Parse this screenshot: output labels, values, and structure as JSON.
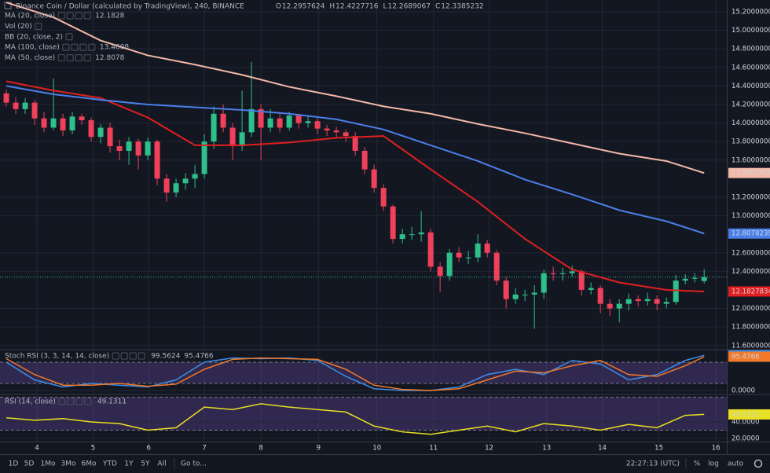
{
  "chart_data": [
    {
      "type": "candlestick",
      "title": "Binance Coin / Dollar (calculated by TradingView), 240, BINANCE",
      "ohlc_labels": [
        "O",
        "H",
        "L",
        "C"
      ],
      "up_color": "#2fbf8a",
      "down_color": "#f0405a",
      "grid": true,
      "open": [
        14.32,
        14.22,
        14.15,
        14.22,
        14.05,
        13.95,
        14.05,
        13.92,
        14.07,
        14.03,
        13.85,
        13.95,
        13.75,
        13.7,
        13.8,
        13.65,
        13.8,
        13.4,
        13.25,
        13.35,
        13.4,
        13.45,
        13.8,
        14.1,
        13.95,
        13.75,
        13.9,
        14.15,
        13.95,
        14.05,
        13.95,
        14.08,
        14.0,
        14.02,
        13.94,
        13.92,
        13.9,
        13.86,
        13.7,
        13.5,
        13.3,
        13.1,
        12.75,
        12.8,
        12.8,
        12.82,
        12.45,
        12.35,
        12.6,
        12.55,
        12.55,
        12.7,
        12.6,
        12.3,
        12.1,
        12.15,
        12.15,
        12.17,
        12.38,
        12.37,
        12.38,
        12.4,
        12.2,
        12.22,
        12.05,
        12.0,
        12.05,
        12.1,
        12.08,
        12.1,
        12.05,
        12.07,
        12.3,
        12.32,
        12.2957624
      ],
      "high": [
        14.36,
        14.28,
        14.27,
        14.25,
        14.12,
        14.48,
        14.1,
        14.12,
        14.1,
        14.06,
        13.99,
        14.0,
        13.82,
        13.85,
        13.83,
        13.84,
        13.82,
        13.45,
        13.4,
        13.46,
        13.55,
        13.88,
        14.18,
        14.2,
        14.0,
        14.35,
        14.66,
        14.2,
        14.15,
        14.12,
        14.12,
        14.1,
        14.08,
        14.05,
        13.98,
        13.96,
        13.93,
        13.9,
        13.74,
        13.55,
        13.34,
        13.12,
        12.86,
        12.88,
        13.05,
        12.86,
        12.5,
        12.64,
        12.66,
        12.62,
        12.8,
        12.74,
        12.63,
        12.34,
        12.22,
        12.2,
        12.25,
        12.42,
        12.45,
        12.44,
        12.46,
        12.42,
        12.28,
        12.25,
        12.1,
        12.1,
        12.16,
        12.14,
        12.17,
        12.14,
        12.12,
        12.36,
        12.37,
        12.38,
        12.4227716
      ],
      "low": [
        14.18,
        14.1,
        14.1,
        13.98,
        13.9,
        13.92,
        13.86,
        13.88,
        13.98,
        13.8,
        13.78,
        13.68,
        13.6,
        13.55,
        13.5,
        13.6,
        13.33,
        13.15,
        13.2,
        13.28,
        13.3,
        13.4,
        13.72,
        13.9,
        13.6,
        13.7,
        13.85,
        13.6,
        13.9,
        13.9,
        13.92,
        13.94,
        13.95,
        13.88,
        13.86,
        13.84,
        13.8,
        13.65,
        13.45,
        13.25,
        13.05,
        12.7,
        12.7,
        12.74,
        12.72,
        12.4,
        12.18,
        12.3,
        12.5,
        12.48,
        12.5,
        12.55,
        12.25,
        12.0,
        12.05,
        12.08,
        11.78,
        12.1,
        12.3,
        12.3,
        12.34,
        12.14,
        12.15,
        11.95,
        11.92,
        11.85,
        11.98,
        12.02,
        12.03,
        11.98,
        12.0,
        12.04,
        12.26,
        12.28,
        12.2689067
      ],
      "close": [
        14.22,
        14.15,
        14.22,
        14.05,
        13.95,
        14.05,
        13.92,
        14.07,
        14.03,
        13.85,
        13.95,
        13.75,
        13.7,
        13.8,
        13.65,
        13.8,
        13.4,
        13.25,
        13.35,
        13.4,
        13.45,
        13.8,
        14.1,
        13.95,
        13.75,
        13.9,
        14.15,
        13.95,
        14.05,
        13.95,
        14.08,
        14.0,
        14.02,
        13.94,
        13.92,
        13.9,
        13.86,
        13.7,
        13.5,
        13.3,
        13.1,
        12.75,
        12.8,
        12.8,
        12.82,
        12.45,
        12.35,
        12.6,
        12.55,
        12.55,
        12.7,
        12.6,
        12.3,
        12.1,
        12.15,
        12.15,
        12.17,
        12.38,
        12.37,
        12.38,
        12.4,
        12.2,
        12.22,
        12.05,
        12.0,
        12.05,
        12.1,
        12.08,
        12.1,
        12.05,
        12.07,
        12.3,
        12.32,
        12.33,
        12.3385232
      ],
      "xlim": [
        -0.67,
        76.4
      ],
      "xticks": [
        {
          "value": 3.25,
          "label": "4"
        },
        {
          "value": 9.2,
          "label": "5"
        },
        {
          "value": 15.1,
          "label": "6"
        },
        {
          "value": 21.0,
          "label": "7"
        },
        {
          "value": 27.0,
          "label": "8"
        },
        {
          "value": 33.1,
          "label": "9"
        },
        {
          "value": 39.3,
          "label": "10"
        },
        {
          "value": 45.3,
          "label": "11"
        },
        {
          "value": 51.2,
          "label": "12"
        },
        {
          "value": 57.3,
          "label": "13"
        },
        {
          "value": 63.2,
          "label": "14"
        },
        {
          "value": 69.2,
          "label": "15"
        },
        {
          "value": 75.25,
          "label": "16"
        }
      ],
      "ylim": [
        11.564,
        15.327
      ],
      "yticks": [
        {
          "value": 15.2,
          "label": "15.2000000"
        },
        {
          "value": 15.0,
          "label": "15.0000000"
        },
        {
          "value": 14.8,
          "label": "14.8000000"
        },
        {
          "value": 14.6,
          "label": "14.6000000"
        },
        {
          "value": 14.4,
          "label": "14.4000000"
        },
        {
          "value": 14.2,
          "label": "14.2000000"
        },
        {
          "value": 14.0,
          "label": "14.0000000"
        },
        {
          "value": 13.8,
          "label": "13.8000000"
        },
        {
          "value": 13.6,
          "label": "13.6000000"
        },
        {
          "value": 13.2,
          "label": "13.2000000"
        },
        {
          "value": 13.0,
          "label": "13.0000000"
        },
        {
          "value": 12.6,
          "label": "12.6000000"
        },
        {
          "value": 12.4,
          "label": "12.4000000"
        },
        {
          "value": 12.0,
          "label": "12.0000000"
        },
        {
          "value": 11.8,
          "label": "11.8000000"
        },
        {
          "value": 11.6,
          "label": "11.6000000"
        }
      ],
      "series": [
        {
          "name": "MA (20, close)",
          "color": "#e01f1f",
          "legend_value": 12.1828,
          "x": [
            0,
            5,
            10,
            15,
            20,
            25,
            30,
            35,
            40,
            45,
            50,
            55,
            60,
            65,
            70,
            74
          ],
          "values": [
            14.45,
            14.35,
            14.27,
            14.06,
            13.76,
            13.76,
            13.79,
            13.84,
            13.86,
            13.5,
            13.15,
            12.75,
            12.42,
            12.28,
            12.2,
            12.1827834
          ]
        },
        {
          "name": "Vol (20)"
        },
        {
          "name": "BB (20, close, 2)"
        },
        {
          "name": "MA (100, close)",
          "color": "#f4b8a6",
          "legend_value": 13.4608,
          "x": [
            0,
            5,
            10,
            15,
            20,
            25,
            30,
            35,
            40,
            45,
            50,
            55,
            60,
            65,
            70,
            74
          ],
          "values": [
            15.3,
            15.14,
            14.89,
            14.73,
            14.63,
            14.52,
            14.39,
            14.29,
            14.18,
            14.1,
            13.99,
            13.89,
            13.78,
            13.67,
            13.59,
            13.4607918
          ]
        },
        {
          "name": "MA (50, close)",
          "color": "#4a7fe8",
          "legend_value": 12.8078,
          "x": [
            0,
            5,
            10,
            15,
            20,
            25,
            30,
            35,
            40,
            45,
            50,
            55,
            60,
            65,
            70,
            74
          ],
          "values": [
            14.4,
            14.31,
            14.25,
            14.2,
            14.17,
            14.14,
            14.1,
            14.04,
            13.93,
            13.76,
            13.59,
            13.39,
            13.23,
            13.06,
            12.94,
            12.8078239
          ]
        }
      ]
    },
    {
      "type": "line",
      "title": "Stoch RSI (3, 3, 14, 14, close)",
      "grid": true,
      "x": [
        0,
        3,
        6,
        9,
        12,
        15,
        18,
        21,
        24,
        27,
        30,
        33,
        36,
        39,
        42,
        45,
        48,
        51,
        54,
        57,
        60,
        63,
        66,
        69,
        72,
        74
      ],
      "ylim": [
        -8.9,
        113.3
      ],
      "yticks": [
        {
          "value": 0,
          "label": "0.0000"
        }
      ],
      "bands": [
        20,
        80
      ],
      "band_color": "#7e57c2",
      "series": [
        {
          "color": "#3d8ee8",
          "values": [
            80,
            30,
            10,
            20,
            15,
            10,
            30,
            80,
            92,
            90,
            92,
            85,
            40,
            5,
            0,
            0,
            10,
            45,
            60,
            45,
            85,
            75,
            30,
            45,
            85,
            99.5624
          ]
        },
        {
          "color": "#f0792a",
          "values": [
            90,
            45,
            15,
            15,
            20,
            12,
            18,
            60,
            88,
            92,
            90,
            88,
            60,
            15,
            3,
            0,
            5,
            30,
            55,
            50,
            70,
            85,
            45,
            40,
            70,
            95.4766
          ]
        }
      ]
    },
    {
      "type": "line",
      "title": "RSI (14, close)",
      "grid": true,
      "x": [
        0,
        3,
        6,
        9,
        12,
        15,
        18,
        21,
        24,
        27,
        30,
        33,
        36,
        39,
        42,
        45,
        48,
        51,
        54,
        57,
        60,
        63,
        66,
        69,
        72,
        74
      ],
      "ylim": [
        16.2,
        72.4
      ],
      "yticks": [
        {
          "value": 40,
          "label": "40.0000"
        },
        {
          "value": 20,
          "label": "20.0000"
        }
      ],
      "bands": [
        30,
        70
      ],
      "band_color": "#7e57c2",
      "series": [
        {
          "color": "#e8e022",
          "values": [
            45,
            42,
            44,
            40,
            38,
            30,
            33,
            58,
            55,
            62,
            58,
            55,
            52,
            35,
            28,
            25,
            30,
            35,
            28,
            38,
            35,
            30,
            37,
            33,
            48,
            49.1311
          ]
        }
      ]
    }
  ],
  "toolbar": {
    "ranges": [
      "1D",
      "5D",
      "1Mo",
      "3Mo",
      "6Mo",
      "YTD",
      "1Y",
      "5Y",
      "All"
    ],
    "goto": "Go to...",
    "time": "22:27:13 (UTC)",
    "scale_buttons": [
      "%",
      "log",
      "auto"
    ]
  }
}
